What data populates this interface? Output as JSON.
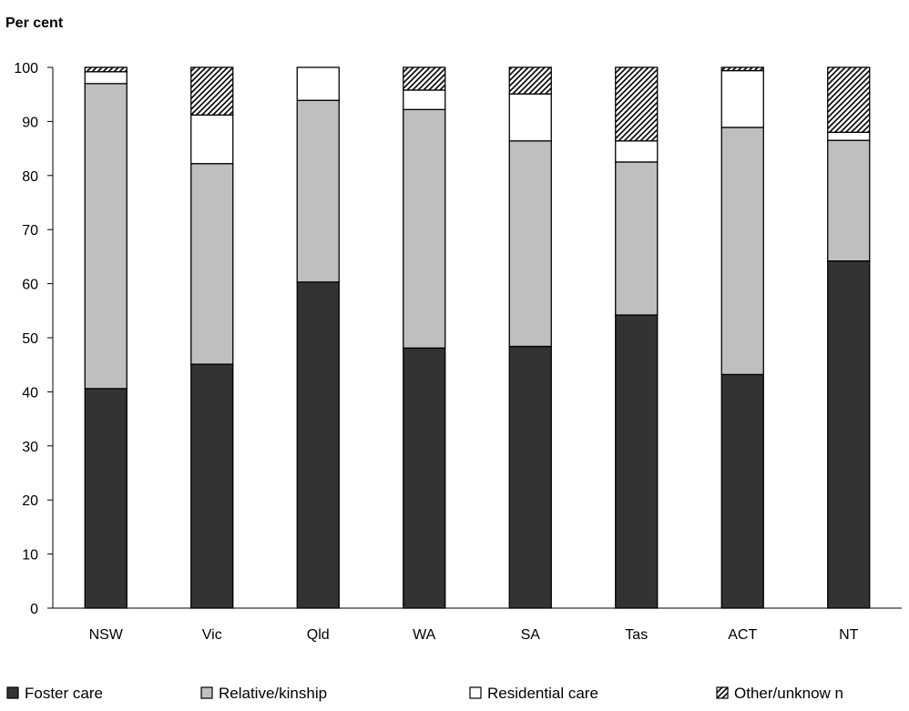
{
  "chart_data": {
    "type": "bar",
    "stacked": true,
    "ylabel": "Per cent",
    "ylim": [
      0,
      100
    ],
    "yticks": [
      0,
      10,
      20,
      30,
      40,
      50,
      60,
      70,
      80,
      90,
      100
    ],
    "grid": false,
    "legend_position": "bottom",
    "categories": [
      "NSW",
      "Vic",
      "Qld",
      "WA",
      "SA",
      "Tas",
      "ACT",
      "NT"
    ],
    "series": [
      {
        "name": "Foster care",
        "color": "#333333",
        "pattern": "solid",
        "values": [
          40.6,
          45.1,
          60.3,
          48.1,
          48.4,
          54.2,
          43.2,
          64.2
        ]
      },
      {
        "name": "Relative/kinship",
        "color": "#bfbfbf",
        "pattern": "solid",
        "values": [
          56.4,
          37.1,
          33.6,
          44.1,
          38.0,
          28.3,
          45.7,
          22.3
        ]
      },
      {
        "name": "Residential care",
        "color": "#ffffff",
        "pattern": "solid",
        "values": [
          2.2,
          9.0,
          6.1,
          3.6,
          8.7,
          3.9,
          10.5,
          1.5
        ]
      },
      {
        "name": "Other/unknow n",
        "color": "#ffffff",
        "pattern": "hatch",
        "values": [
          0.8,
          8.8,
          0.0,
          4.2,
          4.9,
          13.6,
          0.6,
          12.0
        ]
      }
    ]
  }
}
